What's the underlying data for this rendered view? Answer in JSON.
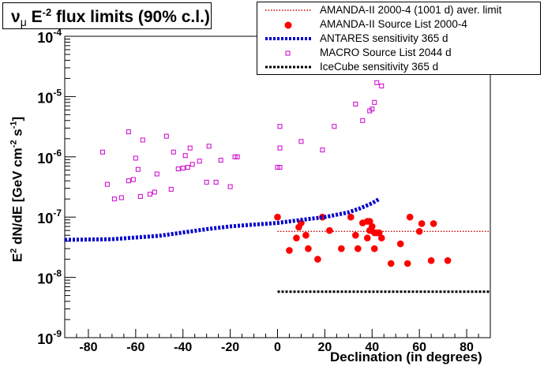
{
  "chart_data": {
    "type": "scatter",
    "title": "νμ E⁻² flux limits (90% c.l.)",
    "title_parts": {
      "nu": "ν",
      "mu": "μ",
      "main": " E",
      "exp": "-2",
      "rest": " flux limits (90% c.l.)"
    },
    "xlabel": "Declination (in degrees)",
    "ylabel_parts": {
      "a": "E",
      "a_sup": "2",
      "b": " dN/dE [GeV cm",
      "b_sup": "-2",
      "c": " s",
      "c_sup": "-1",
      "d": "]"
    },
    "xlim": [
      -90,
      90
    ],
    "ylim": [
      1e-09,
      0.0001
    ],
    "yscale": "log",
    "x_ticks": [
      "-80",
      "-60",
      "-40",
      "-20",
      "0",
      "20",
      "40",
      "60",
      "80"
    ],
    "y_ticks": [
      {
        "base": "10",
        "exp": "-9",
        "value": 1e-09
      },
      {
        "base": "10",
        "exp": "-8",
        "value": 1e-08
      },
      {
        "base": "10",
        "exp": "-7",
        "value": 1e-07
      },
      {
        "base": "10",
        "exp": "-6",
        "value": 1e-06
      },
      {
        "base": "10",
        "exp": "-5",
        "value": 1e-05
      },
      {
        "base": "10",
        "exp": "-4",
        "value": 0.0001
      }
    ],
    "series": [
      {
        "name": "AMANDA-II 2000-4 (1001 d) aver. limit",
        "kind": "line",
        "style": "dotted",
        "color": "#cc0000",
        "x": [
          0,
          90
        ],
        "y": [
          5.8e-08,
          5.8e-08
        ]
      },
      {
        "name": "AMANDA-II Source List 2000-4",
        "kind": "points",
        "marker": "filled-circle",
        "color": "#ff0000",
        "x": [
          0,
          5,
          8,
          9,
          10,
          12,
          13,
          17,
          19,
          22,
          27,
          31,
          33,
          34,
          36,
          38,
          38,
          39,
          39,
          40,
          41,
          41,
          42,
          43,
          44,
          48,
          52,
          55,
          56,
          60,
          61,
          65,
          66,
          72
        ],
        "y": [
          1e-07,
          2.8e-08,
          4.5e-08,
          6.8e-08,
          8e-08,
          5e-08,
          3e-08,
          2e-08,
          1e-07,
          6e-08,
          3e-08,
          1e-07,
          5e-08,
          3e-08,
          8e-08,
          4.5e-08,
          8.5e-08,
          8.5e-08,
          6e-08,
          7e-08,
          3e-08,
          5.5e-08,
          5.5e-08,
          5.5e-08,
          4.5e-08,
          1.7e-08,
          3.6e-08,
          1.7e-08,
          1e-07,
          5.8e-08,
          7.8e-08,
          1.9e-08,
          7.8e-08,
          1.9e-08
        ]
      },
      {
        "name": "ANTARES sensitivity 365 d",
        "kind": "line",
        "style": "dashed-thick",
        "color": "#0000cc",
        "x": [
          -90,
          -70,
          -50,
          -30,
          -20,
          -10,
          0,
          10,
          20,
          30,
          35,
          40,
          43
        ],
        "y": [
          4.2e-08,
          4.3e-08,
          4.9e-08,
          6.3e-08,
          7e-08,
          7.5e-08,
          8e-08,
          9e-08,
          1e-07,
          1.2e-07,
          1.4e-07,
          1.7e-07,
          2e-07
        ]
      },
      {
        "name": "MACRO Source List 2044 d",
        "kind": "points",
        "marker": "open-square",
        "color": "#cc00cc",
        "x": [
          -74,
          -72,
          -69,
          -66,
          -63,
          -63,
          -61,
          -60,
          -59,
          -58,
          -57,
          -54,
          -52,
          -51,
          -47,
          -45,
          -44,
          -42,
          -40,
          -39,
          -38,
          -37,
          -36,
          -33,
          -30,
          -29,
          -26,
          -24,
          -20,
          -18,
          -17,
          0,
          1,
          1,
          1,
          10,
          19,
          24,
          33,
          36,
          39,
          40,
          41,
          42,
          44
        ],
        "y": [
          1.2e-06,
          3.5e-07,
          2e-07,
          2.1e-07,
          4e-07,
          2.6e-06,
          4.2e-07,
          9.5e-07,
          6.2e-07,
          2.2e-07,
          1.9e-06,
          2.4e-07,
          2.6e-07,
          5.2e-07,
          2.2e-06,
          2.9e-07,
          1.2e-06,
          6.3e-07,
          6.5e-07,
          1.05e-06,
          6.7e-07,
          1.4e-06,
          7.5e-07,
          8.5e-07,
          3.8e-07,
          1.5e-06,
          3.8e-07,
          8.8e-07,
          3.2e-07,
          1e-06,
          1e-06,
          6.7e-07,
          1.4e-06,
          3.2e-06,
          6.7e-07,
          1.8e-06,
          1.3e-06,
          3.2e-06,
          7.5e-06,
          4e-06,
          5.8e-06,
          6.2e-06,
          8e-06,
          1.7e-05,
          1.5e-05
        ]
      },
      {
        "name": "IceCube sensitivity 365 d",
        "kind": "line",
        "style": "dotted-thick",
        "color": "#000000",
        "x": [
          0,
          90
        ],
        "y": [
          5.8e-09,
          5.8e-09
        ]
      }
    ],
    "legend_placement": "top-right"
  }
}
